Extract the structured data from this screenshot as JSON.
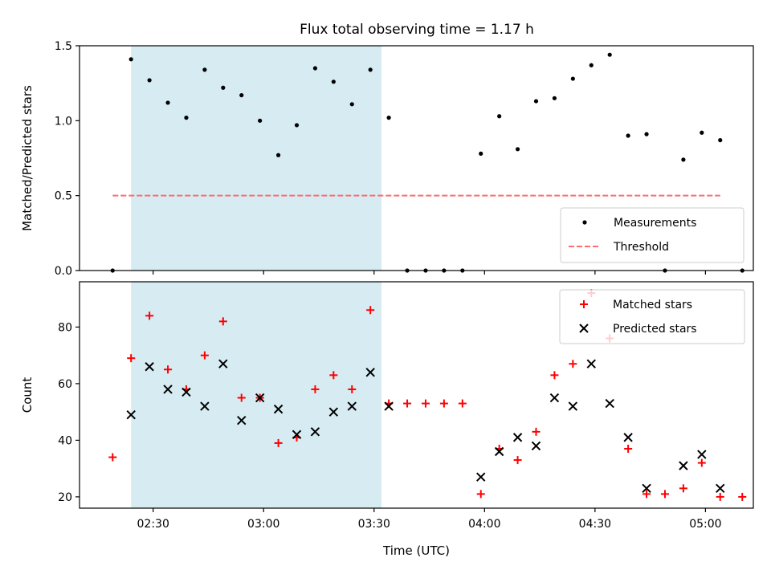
{
  "title": "Flux total observing time = 1.17 h",
  "chart_data": [
    {
      "type": "scatter",
      "name": "ratio",
      "ylabel": "Matched/Predicted stars",
      "xlabel": "",
      "xlim": [
        "02:10",
        "05:13"
      ],
      "ylim": [
        0,
        1.5
      ],
      "yticks": [
        0.0,
        0.5,
        1.0,
        1.5
      ],
      "ytick_labels": [
        "0.0",
        "0.5",
        "1.0",
        "1.5"
      ],
      "xticks": [
        "02:30",
        "03:00",
        "03:30",
        "04:00",
        "04:30",
        "05:00"
      ],
      "show_xtick_labels": false,
      "grid": false,
      "shaded_span": {
        "start": "02:24",
        "end": "03:32",
        "color": "#add8e6",
        "alpha": 0.5
      },
      "threshold": {
        "value": 0.5,
        "start": "02:19",
        "end": "05:04",
        "color": "#ff6b6b",
        "style": "dashed"
      },
      "legend": {
        "placement": "lower right",
        "entries": [
          "Measurements",
          "Threshold"
        ]
      },
      "series": [
        {
          "name": "Measurements",
          "color": "#000000",
          "x": [
            "02:19",
            "02:24",
            "02:29",
            "02:34",
            "02:39",
            "02:44",
            "02:49",
            "02:54",
            "02:59",
            "03:04",
            "03:09",
            "03:14",
            "03:19",
            "03:24",
            "03:29",
            "03:34",
            "03:39",
            "03:44",
            "03:49",
            "03:54",
            "03:59",
            "04:04",
            "04:09",
            "04:14",
            "04:19",
            "04:24",
            "04:29",
            "04:34",
            "04:39",
            "04:44",
            "04:49",
            "04:54",
            "04:59",
            "05:04",
            "05:10"
          ],
          "y": [
            0.0,
            1.41,
            1.27,
            1.12,
            1.02,
            1.34,
            1.22,
            1.17,
            1.0,
            0.77,
            0.97,
            1.35,
            1.26,
            1.11,
            1.34,
            1.02,
            0.0,
            0.0,
            0.0,
            0.0,
            0.78,
            1.03,
            0.81,
            1.13,
            1.15,
            1.28,
            1.37,
            1.44,
            0.9,
            0.91,
            0.0,
            0.74,
            0.92,
            0.87,
            0.0
          ]
        }
      ]
    },
    {
      "type": "scatter",
      "name": "counts",
      "ylabel": "Count",
      "xlabel": "Time (UTC)",
      "xlim": [
        "02:10",
        "05:13"
      ],
      "ylim": [
        16,
        96
      ],
      "yticks": [
        20,
        40,
        60,
        80
      ],
      "ytick_labels": [
        "20",
        "40",
        "60",
        "80"
      ],
      "xticks": [
        "02:30",
        "03:00",
        "03:30",
        "04:00",
        "04:30",
        "05:00"
      ],
      "show_xtick_labels": true,
      "grid": false,
      "shaded_span": {
        "start": "02:24",
        "end": "03:32",
        "color": "#add8e6",
        "alpha": 0.5
      },
      "legend": {
        "placement": "upper right",
        "entries": [
          "Matched stars",
          "Predicted stars"
        ]
      },
      "series": [
        {
          "name": "Matched stars",
          "marker": "plus",
          "color": "#ff0000",
          "x": [
            "02:19",
            "02:24",
            "02:29",
            "02:34",
            "02:39",
            "02:44",
            "02:49",
            "02:54",
            "02:59",
            "03:04",
            "03:09",
            "03:14",
            "03:19",
            "03:24",
            "03:29",
            "03:34",
            "03:39",
            "03:44",
            "03:49",
            "03:54",
            "03:59",
            "04:04",
            "04:09",
            "04:14",
            "04:19",
            "04:24",
            "04:29",
            "04:34",
            "04:39",
            "04:44",
            "04:49",
            "04:54",
            "04:59",
            "05:04",
            "05:10"
          ],
          "y": [
            34,
            69,
            84,
            65,
            58,
            70,
            82,
            55,
            55,
            39,
            41,
            58,
            63,
            58,
            86,
            53,
            53,
            53,
            53,
            53,
            21,
            37,
            33,
            43,
            63,
            67,
            92,
            76,
            37,
            21,
            21,
            23,
            32,
            20,
            20
          ]
        },
        {
          "name": "Predicted stars",
          "marker": "x",
          "color": "#000000",
          "x": [
            "02:24",
            "02:29",
            "02:34",
            "02:39",
            "02:44",
            "02:49",
            "02:54",
            "02:59",
            "03:04",
            "03:09",
            "03:14",
            "03:19",
            "03:24",
            "03:29",
            "03:34",
            "03:59",
            "04:04",
            "04:09",
            "04:14",
            "04:19",
            "04:24",
            "04:29",
            "04:34",
            "04:39",
            "04:44",
            "04:54",
            "04:59",
            "05:04"
          ],
          "y": [
            49,
            66,
            58,
            57,
            52,
            67,
            47,
            55,
            51,
            42,
            43,
            50,
            52,
            64,
            52,
            27,
            36,
            41,
            38,
            55,
            52,
            67,
            53,
            41,
            23,
            31,
            35,
            23
          ]
        }
      ]
    }
  ]
}
